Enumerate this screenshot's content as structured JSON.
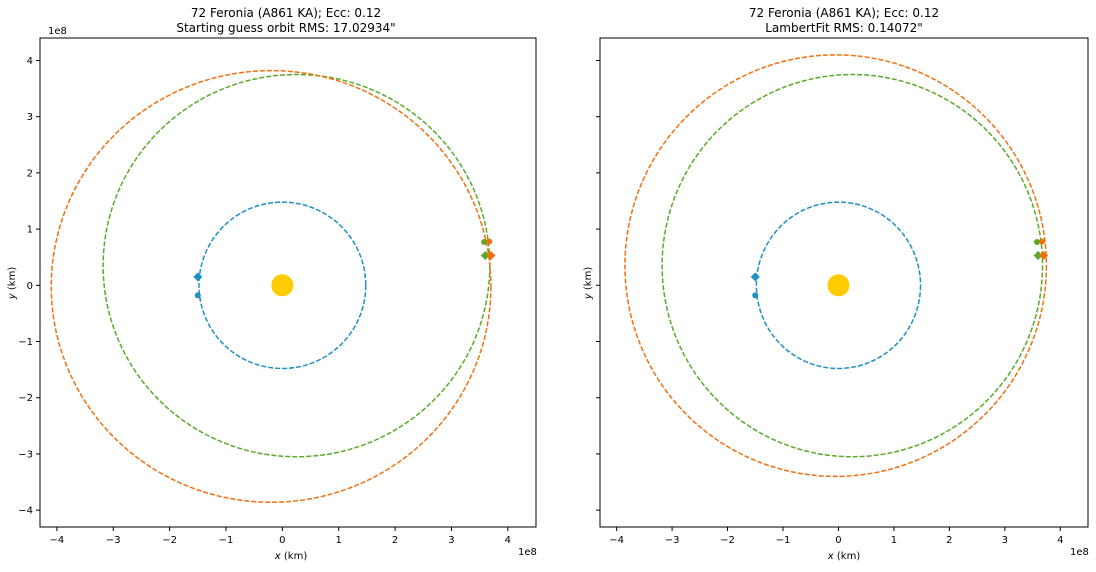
{
  "chart_data": [
    {
      "type": "line",
      "title_line1": "72 Feronia (A861 KA); Ecc: 0.12",
      "title_line2": "Starting guess orbit RMS: 17.02934\"",
      "xlabel": "x (km)",
      "ylabel": "y (km)",
      "x_offset_label": "1e8",
      "y_offset_label": "1e8",
      "xlim": [
        -4.3,
        4.5
      ],
      "ylim": [
        -4.3,
        4.4
      ],
      "xticks": [
        -4,
        -3,
        -2,
        -1,
        0,
        1,
        2,
        3,
        4
      ],
      "yticks": [
        -4,
        -3,
        -2,
        -1,
        0,
        1,
        2,
        3,
        4
      ],
      "xtick_labels": [
        "−4",
        "−3",
        "−2",
        "−1",
        "0",
        "1",
        "2",
        "3",
        "4"
      ],
      "ytick_labels": [
        "−4",
        "−3",
        "−2",
        "−1",
        "0",
        "1",
        "2",
        "3",
        "4"
      ],
      "show_y_tick_labels": true,
      "sun": {
        "x": 0,
        "y": 0,
        "color": "#FFCC00"
      },
      "series": [
        {
          "kind": "ellipse",
          "color": "#1f8fc4",
          "cx": 0.0,
          "cy": 0.0,
          "rx": 1.48,
          "ry": 1.48
        },
        {
          "kind": "ellipse",
          "color": "#5aaa2a",
          "cx": 0.25,
          "cy": 0.35,
          "rx": 3.43,
          "ry": 3.4
        },
        {
          "kind": "ellipse",
          "color": "#f07010",
          "cx": -0.2,
          "cy": -0.02,
          "rx": 3.9,
          "ry": 3.84
        }
      ],
      "markers": [
        {
          "color": "#1f8fc4",
          "shape": "diamond",
          "x": -1.5,
          "y": 0.15
        },
        {
          "color": "#1f8fc4",
          "shape": "dot",
          "x": -1.5,
          "y": -0.18
        },
        {
          "color": "#5aaa2a",
          "shape": "dot",
          "x": 3.58,
          "y": 0.77
        },
        {
          "color": "#5aaa2a",
          "shape": "diamond",
          "x": 3.6,
          "y": 0.53
        },
        {
          "color": "#f07010",
          "shape": "dot",
          "x": 3.67,
          "y": 0.78
        },
        {
          "color": "#f07010",
          "shape": "diamond",
          "x": 3.7,
          "y": 0.53
        }
      ]
    },
    {
      "type": "line",
      "title_line1": "72 Feronia (A861 KA); Ecc: 0.12",
      "title_line2": "LambertFit RMS: 0.14072\"",
      "xlabel": "x (km)",
      "ylabel": "y (km)",
      "x_offset_label": "1e8",
      "y_offset_label": "",
      "xlim": [
        -4.3,
        4.5
      ],
      "ylim": [
        -4.3,
        4.4
      ],
      "xticks": [
        -4,
        -3,
        -2,
        -1,
        0,
        1,
        2,
        3,
        4
      ],
      "yticks": [
        -4,
        -3,
        -2,
        -1,
        0,
        1,
        2,
        3,
        4
      ],
      "xtick_labels": [
        "−4",
        "−3",
        "−2",
        "−1",
        "0",
        "1",
        "2",
        "3",
        "4"
      ],
      "ytick_labels": [],
      "show_y_tick_labels": false,
      "sun": {
        "x": 0,
        "y": 0,
        "color": "#FFCC00"
      },
      "series": [
        {
          "kind": "ellipse",
          "color": "#1f8fc4",
          "cx": 0.0,
          "cy": 0.0,
          "rx": 1.48,
          "ry": 1.48
        },
        {
          "kind": "ellipse",
          "color": "#5aaa2a",
          "cx": 0.25,
          "cy": 0.35,
          "rx": 3.43,
          "ry": 3.4
        },
        {
          "kind": "ellipse",
          "color": "#f07010",
          "cx": -0.05,
          "cy": 0.35,
          "rx": 3.8,
          "ry": 3.75
        }
      ],
      "markers": [
        {
          "color": "#1f8fc4",
          "shape": "diamond",
          "x": -1.5,
          "y": 0.15
        },
        {
          "color": "#1f8fc4",
          "shape": "dot",
          "x": -1.5,
          "y": -0.18
        },
        {
          "color": "#5aaa2a",
          "shape": "dot",
          "x": 3.58,
          "y": 0.77
        },
        {
          "color": "#5aaa2a",
          "shape": "diamond",
          "x": 3.6,
          "y": 0.53
        },
        {
          "color": "#f07010",
          "shape": "dot",
          "x": 3.67,
          "y": 0.78
        },
        {
          "color": "#f07010",
          "shape": "diamond",
          "x": 3.7,
          "y": 0.53
        }
      ]
    }
  ]
}
